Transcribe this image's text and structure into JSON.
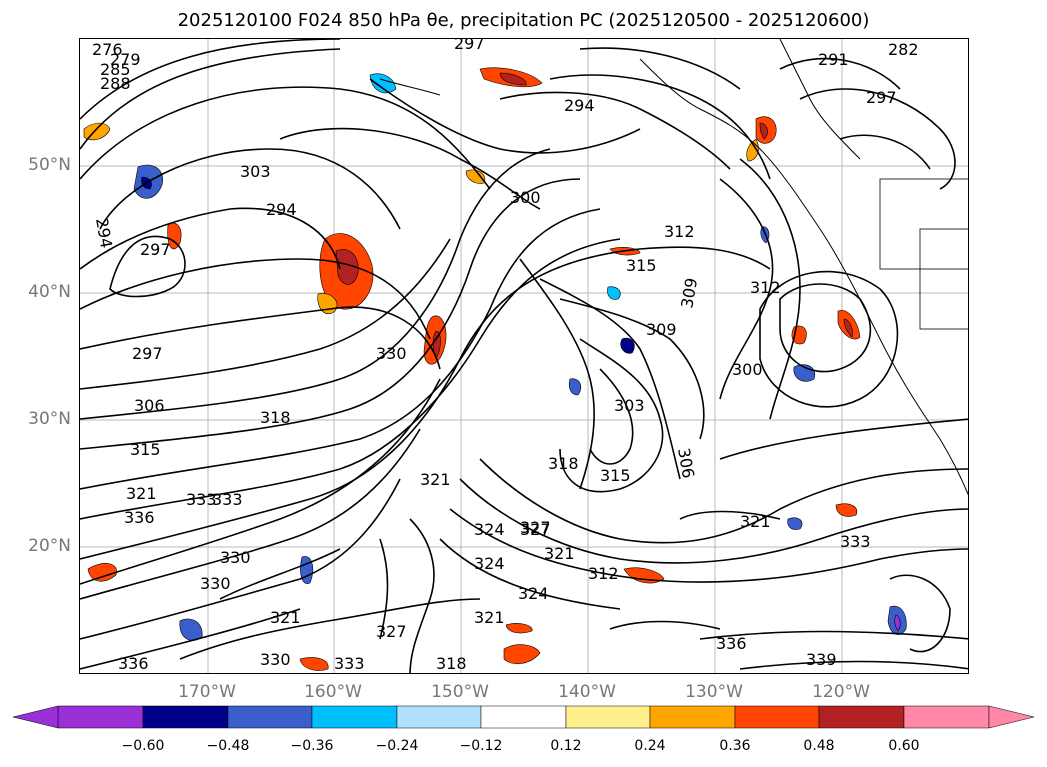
{
  "title": "2025120100 F024 850 hPa θe, precipitation PC (2025120500 - 2025120600)",
  "map": {
    "lat_labels": [
      "50°N",
      "40°N",
      "30°N",
      "20°N"
    ],
    "lon_labels": [
      "170°W",
      "160°W",
      "150°W",
      "140°W",
      "130°W",
      "120°W"
    ],
    "contour_labels": [
      "276",
      "279",
      "285",
      "288",
      "282",
      "294",
      "297",
      "303",
      "294",
      "297",
      "297",
      "306",
      "315",
      "318",
      "321",
      "324",
      "327",
      "330",
      "333",
      "300",
      "294",
      "297",
      "291",
      "312",
      "315",
      "309",
      "309",
      "312",
      "303",
      "300",
      "306",
      "318",
      "315",
      "321",
      "324",
      "327",
      "321",
      "312",
      "324",
      "321",
      "336",
      "339",
      "333",
      "333",
      "330",
      "318",
      "327",
      "330",
      "336",
      "321",
      "333",
      "336",
      "330",
      "321"
    ],
    "precip_colors": {
      "purple": "#9b30d9",
      "navy": "#00008b",
      "royal": "#3a5fcd",
      "sky": "#00bfff",
      "pale_blue": "#b0e2ff",
      "yellow": "#fff08c",
      "orange": "#ffa500",
      "red_orange": "#ff4500",
      "dark_red": "#b22222",
      "pink": "#ff88a8"
    }
  },
  "colorbar": {
    "tick_labels": [
      "−0.60",
      "−0.48",
      "−0.36",
      "−0.24",
      "−0.12",
      "0.12",
      "0.24",
      "0.36",
      "0.48",
      "0.60"
    ],
    "colors": [
      "#9b30d9",
      "#00008b",
      "#3a5fcd",
      "#00bfff",
      "#b0e2ff",
      "#ffffff",
      "#fff08c",
      "#ffa500",
      "#ff4500",
      "#b22222",
      "#ff88a8"
    ]
  }
}
